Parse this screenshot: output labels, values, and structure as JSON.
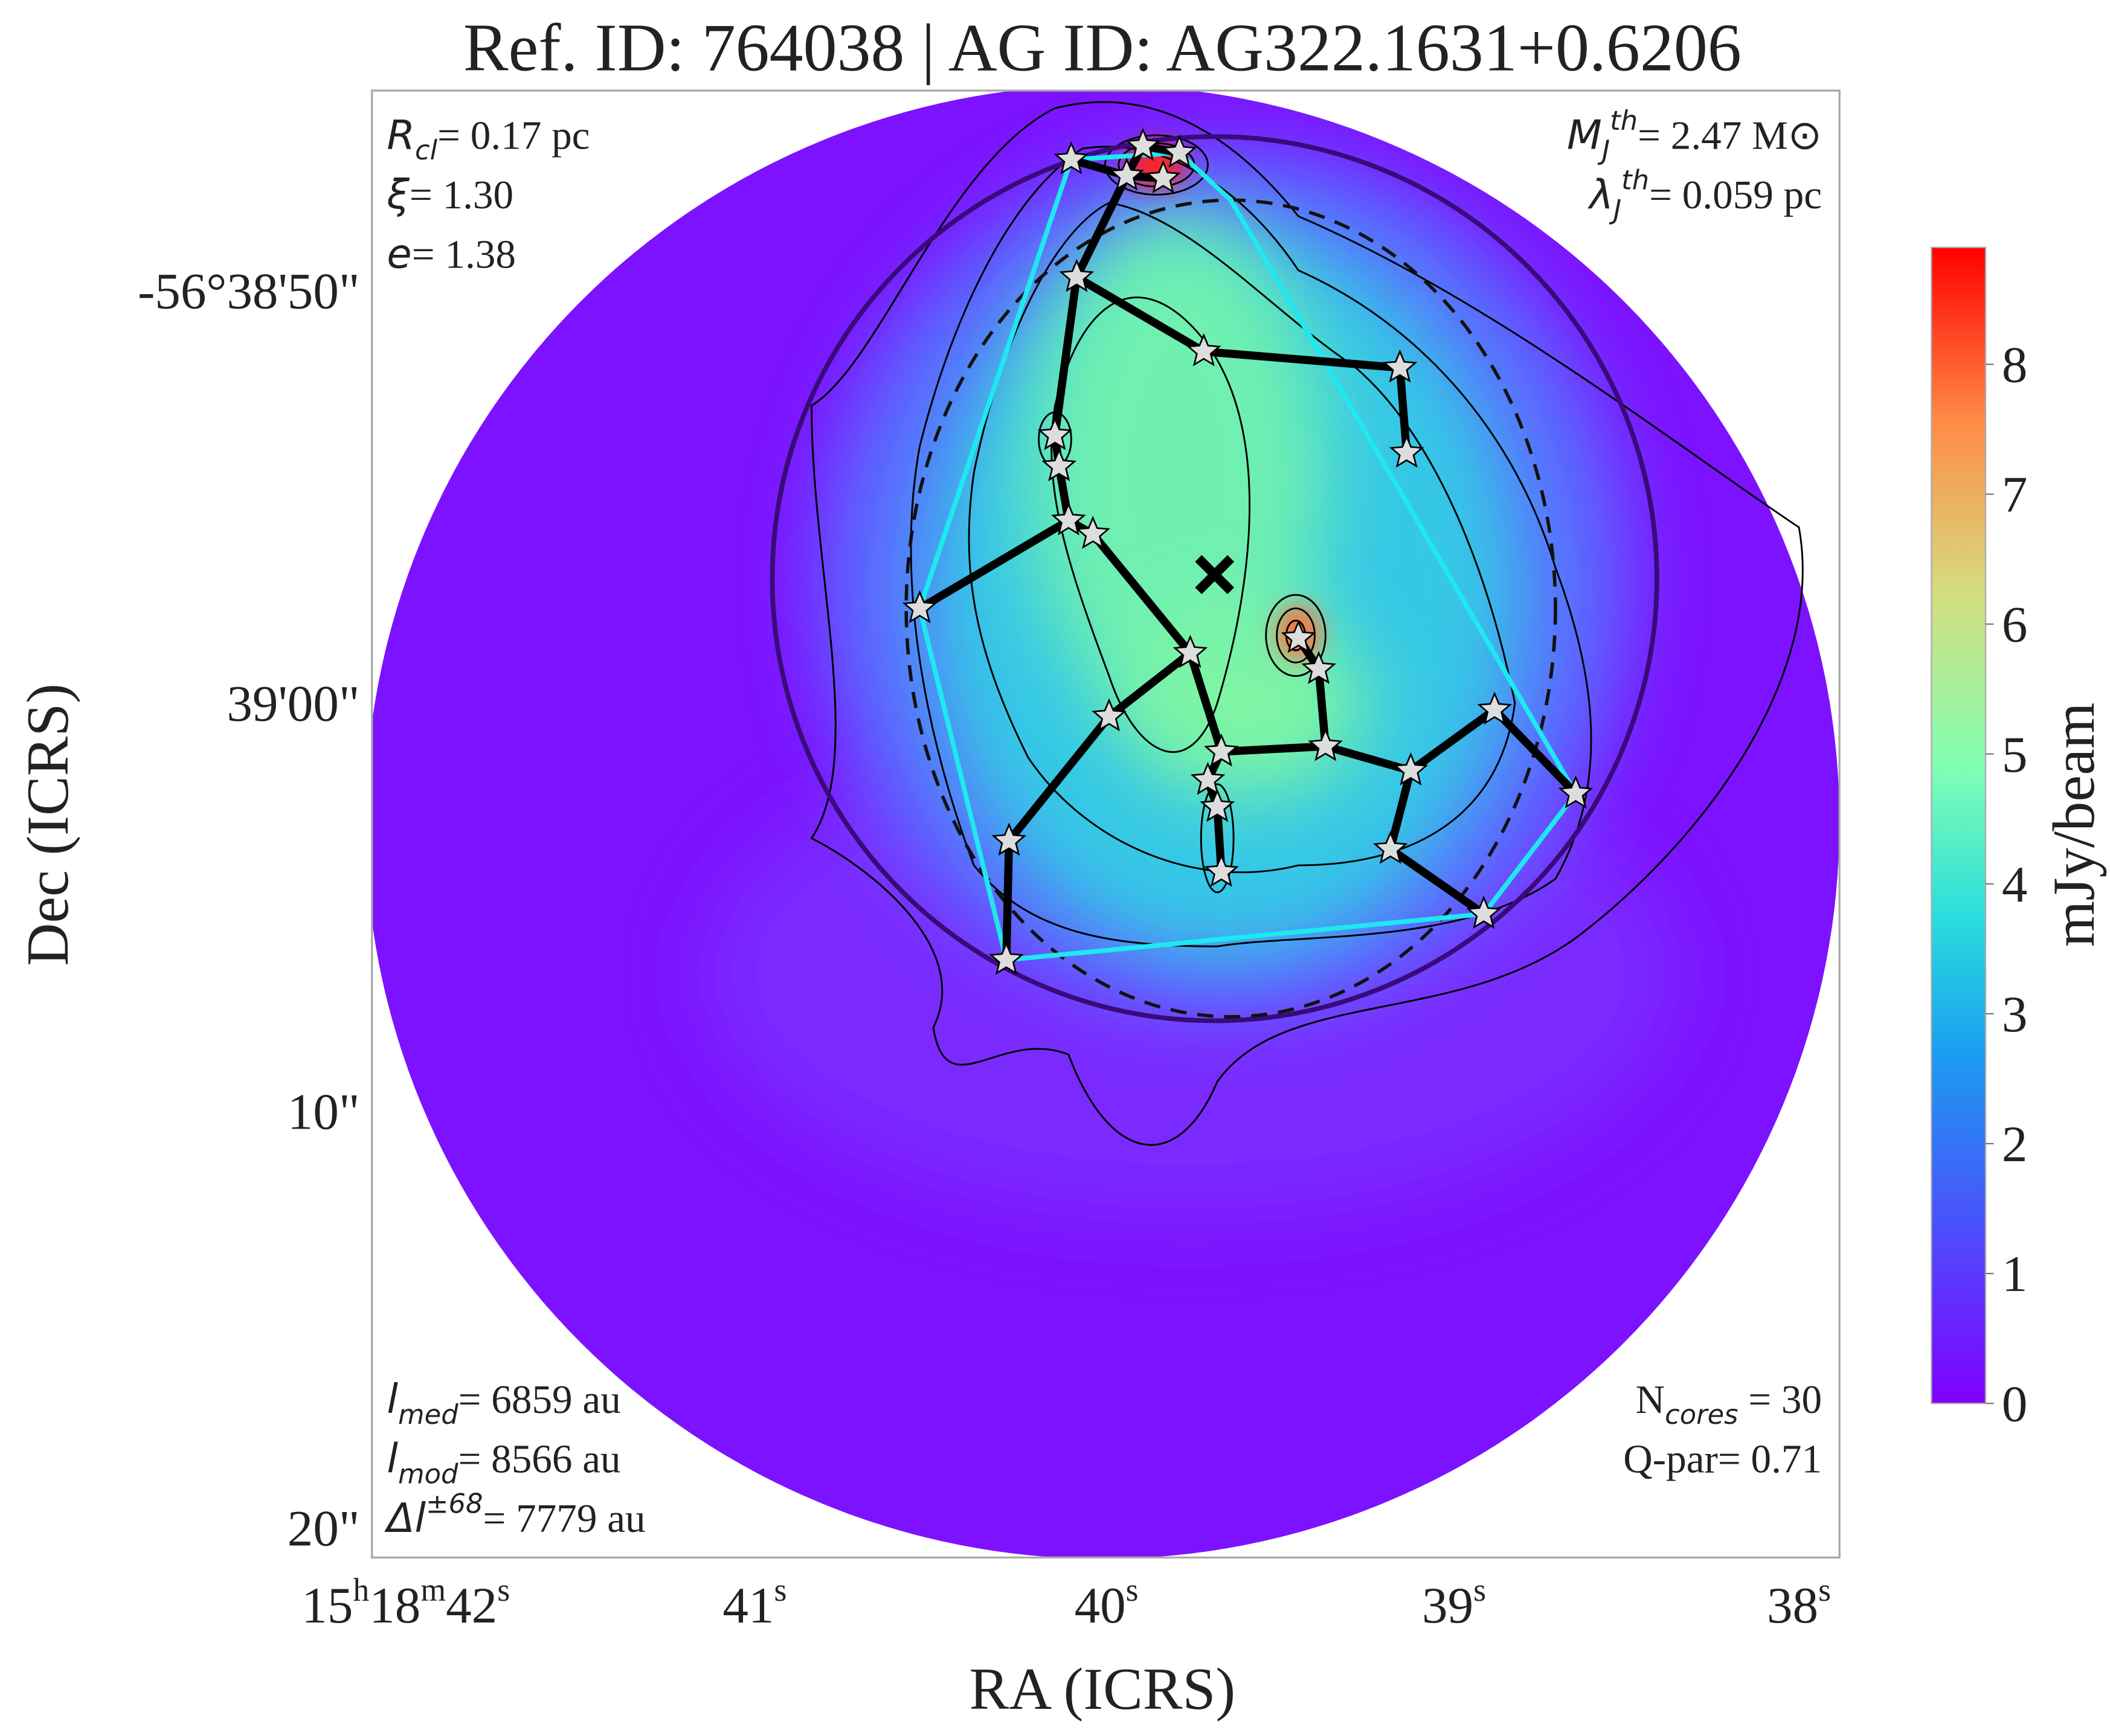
{
  "title": "Ref. ID: 764038 | AG ID: AG322.1631+0.6206",
  "x_axis": {
    "label": "RA (ICRS)",
    "ticks": [
      [
        "15",
        "h",
        "18",
        "m",
        "42",
        "s"
      ],
      [
        "41",
        "s"
      ],
      [
        "40",
        "s"
      ],
      [
        "39",
        "s"
      ],
      [
        "38",
        "s"
      ]
    ]
  },
  "y_axis": {
    "label": "Dec (ICRS)",
    "ticks": [
      "-56°38'50\"",
      "39'00\"",
      "10\"",
      "20\""
    ]
  },
  "colorbar": {
    "label": "mJy/beam",
    "range": [
      0,
      8.9
    ],
    "ticks": [
      0,
      1,
      2,
      3,
      4,
      5,
      6,
      7,
      8
    ]
  },
  "annotations": {
    "top_left": [
      {
        "sym": "R",
        "sub": "cl",
        "text": "= 0.17 pc"
      },
      {
        "sym": "ξ",
        "text": "= 1.30"
      },
      {
        "sym": "e",
        "text": "= 1.38"
      }
    ],
    "top_right": [
      {
        "sym": "M",
        "sub": "J",
        "sup": "th",
        "text": "= 2.47 M⊙"
      },
      {
        "sym": "λ",
        "sub": "J",
        "sup": "th",
        "text": "= 0.059 pc"
      }
    ],
    "bottom_left": [
      {
        "sym": "l",
        "sub": "med",
        "text": "= 6859 au"
      },
      {
        "sym": "l",
        "sub": "mod",
        "text": "= 8566 au"
      },
      {
        "sym": "Δl",
        "sup": "±68",
        "text": "= 7779 au"
      }
    ],
    "bottom_right": [
      {
        "lead": "N",
        "sub": "cores",
        "text": " = 30"
      },
      {
        "text": "Q-par= 0.71"
      }
    ]
  }
}
